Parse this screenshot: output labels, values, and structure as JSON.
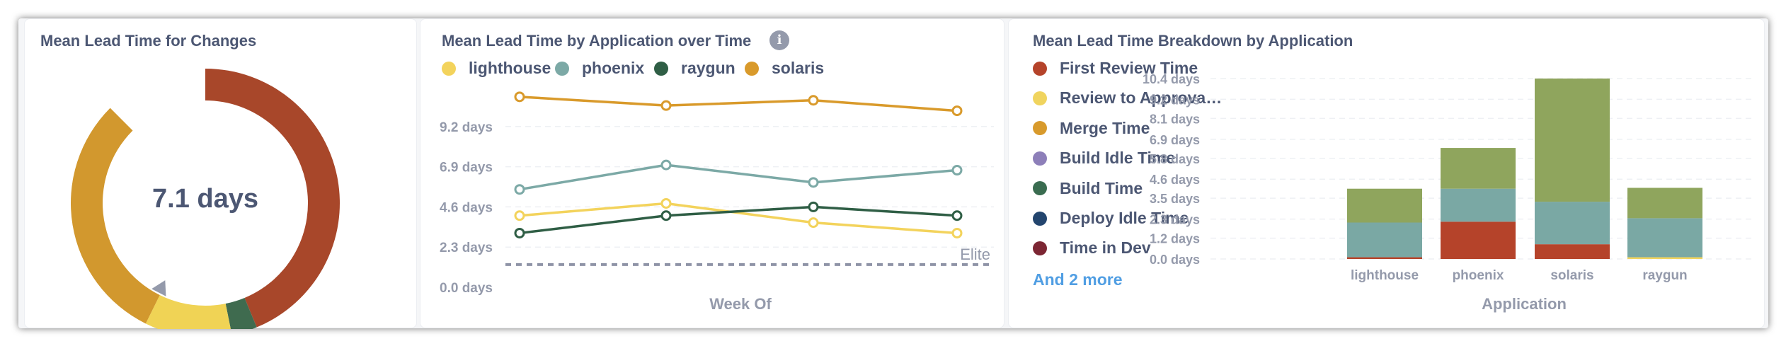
{
  "cards": {
    "donut": {
      "title": "Mean Lead Time for Changes",
      "center_value": "7.1 days",
      "segments": [
        {
          "value": 3.55,
          "color": "#a8472a"
        },
        {
          "value": 0.25,
          "color": "#3f6b4f"
        },
        {
          "value": 0.85,
          "color": "#f0d355"
        },
        {
          "value": 2.45,
          "color": "#d2982e"
        }
      ],
      "gap_fraction": 0.125,
      "marker_color": "#949aab"
    },
    "line": {
      "title": "Mean Lead Time by Application over Time",
      "info_icon": "info-icon",
      "legend": [
        {
          "name": "lighthouse",
          "color": "#f3d35c"
        },
        {
          "name": "phoenix",
          "color": "#7ca9a6"
        },
        {
          "name": "raygun",
          "color": "#2f5e45"
        },
        {
          "name": "solaris",
          "color": "#d99a2b"
        }
      ]
    },
    "bar": {
      "title": "Mean Lead Time Breakdown by Application",
      "legend": [
        {
          "name": "First Review Time",
          "color": "#b5432a"
        },
        {
          "name": "Review to Approva…",
          "color": "#f0d45e"
        },
        {
          "name": "Merge Time",
          "color": "#d89a2c"
        },
        {
          "name": "Build Idle Time",
          "color": "#8d7fb9"
        },
        {
          "name": "Build Time",
          "color": "#3a6c50"
        },
        {
          "name": "Deploy Idle Time",
          "color": "#23456e"
        },
        {
          "name": "Time in Dev",
          "color": "#7c2633"
        }
      ],
      "more_link": "And 2 more"
    }
  },
  "chart_data": [
    {
      "type": "pie",
      "title": "Mean Lead Time for Changes",
      "center_label": "7.1 days",
      "values": [
        3.55,
        0.25,
        0.85,
        2.45
      ]
    },
    {
      "type": "line",
      "title": "Mean Lead Time by Application over Time",
      "xlabel": "Week Of",
      "ylabel": "",
      "ylim": [
        0,
        11.5
      ],
      "yticks": [
        0,
        2.3,
        4.6,
        6.9,
        9.2
      ],
      "ytick_labels": [
        "0.0 days",
        "2.3 days",
        "4.6 days",
        "6.9 days",
        "9.2 days"
      ],
      "x": [
        1,
        2,
        3,
        4
      ],
      "series": [
        {
          "name": "lighthouse",
          "color": "#f3d35c",
          "values": [
            4.1,
            4.8,
            3.7,
            3.1
          ]
        },
        {
          "name": "phoenix",
          "color": "#7ca9a6",
          "values": [
            5.6,
            7.0,
            6.0,
            6.7
          ]
        },
        {
          "name": "raygun",
          "color": "#2f5e45",
          "values": [
            3.1,
            4.1,
            4.6,
            4.1
          ]
        },
        {
          "name": "solaris",
          "color": "#d99a2b",
          "values": [
            10.9,
            10.4,
            10.7,
            10.1
          ]
        }
      ],
      "goal": {
        "label": "Elite",
        "value": 1.3,
        "color": "#8e93a6"
      }
    },
    {
      "type": "bar",
      "stacked": true,
      "title": "Mean Lead Time Breakdown by Application",
      "xlabel": "Application",
      "ylabel": "",
      "ylim": [
        0,
        10.4
      ],
      "yticks": [
        0,
        1.2,
        2.3,
        3.5,
        4.6,
        5.8,
        6.9,
        8.1,
        9.2,
        10.4
      ],
      "ytick_labels": [
        "0.0 days",
        "1.2 days",
        "2.3 days",
        "3.5 days",
        "4.6 days",
        "5.8 days",
        "6.9 days",
        "8.1 days",
        "9.2 days",
        "10.4 days"
      ],
      "categories": [
        "lighthouse",
        "phoenix",
        "solaris",
        "raygun"
      ],
      "series": [
        {
          "color": "#b5432a",
          "values": [
            0.1,
            2.15,
            0.85,
            0.0
          ]
        },
        {
          "color": "#f0d45e",
          "values": [
            0.0,
            0.0,
            0.0,
            0.1
          ]
        },
        {
          "color": "#7aa8a4",
          "values": [
            2.0,
            1.9,
            2.45,
            2.25
          ]
        },
        {
          "color": "#8fa55d",
          "values": [
            1.95,
            2.35,
            7.1,
            1.75
          ]
        }
      ]
    }
  ]
}
